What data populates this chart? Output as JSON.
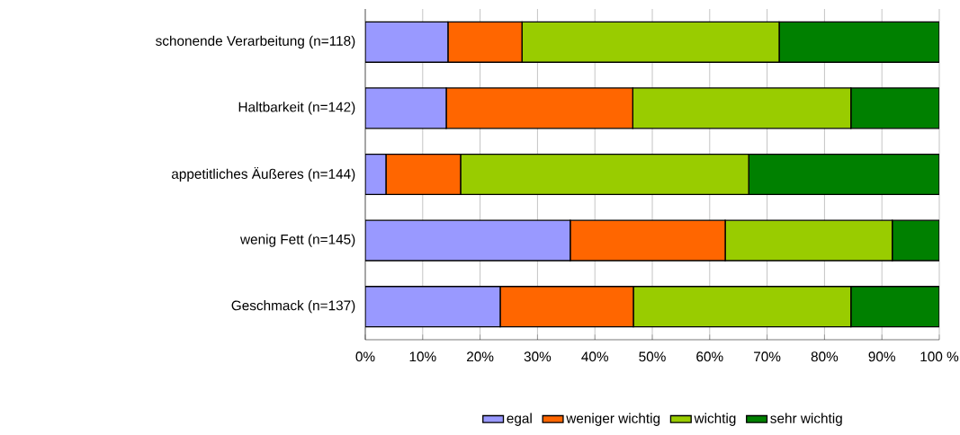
{
  "chart_data": {
    "type": "bar",
    "orientation": "horizontal",
    "stacked": true,
    "categories": [
      "schonende Verarbeitung (n=118)",
      "Haltbarkeit (n=142)",
      "appetitliches Äußeres (n=144)",
      "wenig Fett (n=145)",
      "Geschmack (n=137)"
    ],
    "series": [
      {
        "name": "egal",
        "color": "#9999ff",
        "values": [
          14.4,
          14.1,
          3.6,
          35.7,
          23.5
        ]
      },
      {
        "name": "weniger wichtig",
        "color": "#ff6600",
        "values": [
          12.9,
          32.5,
          13.0,
          27.0,
          23.2
        ]
      },
      {
        "name": "wichtig",
        "color": "#99cc00",
        "values": [
          44.8,
          38.0,
          50.2,
          29.1,
          37.9
        ]
      },
      {
        "name": "sehr wichtig",
        "color": "#008000",
        "values": [
          27.9,
          15.4,
          33.2,
          8.2,
          15.4
        ]
      }
    ],
    "xlim": [
      0,
      100
    ],
    "xticks": [
      {
        "value": 0,
        "label": "0%"
      },
      {
        "value": 10,
        "label": "10%"
      },
      {
        "value": 20,
        "label": "20%"
      },
      {
        "value": 30,
        "label": "30%"
      },
      {
        "value": 40,
        "label": "40%"
      },
      {
        "value": 50,
        "label": "50%"
      },
      {
        "value": 60,
        "label": "60%"
      },
      {
        "value": 70,
        "label": "70%"
      },
      {
        "value": 80,
        "label": "80%"
      },
      {
        "value": 90,
        "label": "90%"
      },
      {
        "value": 100,
        "label": "100 %"
      }
    ],
    "grid": "x",
    "legend": "bottom"
  }
}
